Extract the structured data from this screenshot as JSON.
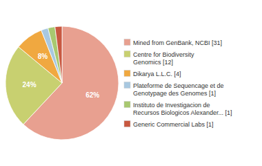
{
  "chart_data": {
    "type": "pie",
    "categories": [
      "Mined from GenBank, NCBI [31]",
      "Centre for Biodiversity\nGenomics [12]",
      "Dikarya L.L.C. [4]",
      "Plateforme de Sequencage et de\nGenotypage des Genomes [1]",
      "Instituto de Investigacion de\nRecursos Biologicos Alexander... [1]",
      "Generic Commercial Labs [1]"
    ],
    "values": [
      62,
      24,
      8,
      2,
      2,
      2
    ],
    "value_labels": [
      "62%",
      "24%",
      "8%",
      null,
      null,
      null
    ],
    "colors": [
      "#e8a090",
      "#c8d070",
      "#f0a840",
      "#a8c8e0",
      "#a8c870",
      "#c85840"
    ],
    "data_labels": true,
    "legend": "right"
  }
}
